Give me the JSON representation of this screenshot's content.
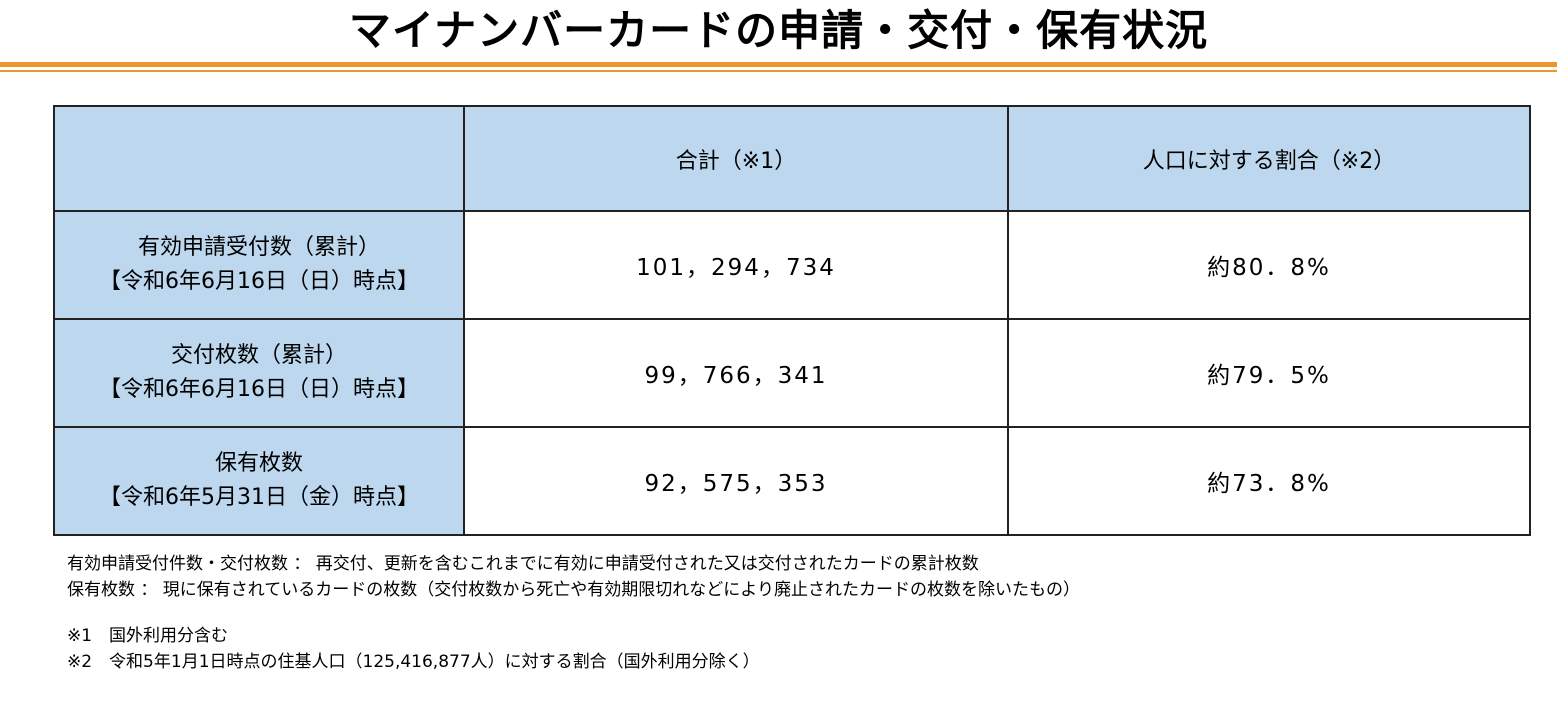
{
  "title": "マイナンバーカードの申請・交付・保有状況",
  "table": {
    "headers": [
      "",
      "合計（※1）",
      "人口に対する割合（※2）"
    ],
    "rows": [
      {
        "label_line1": "有効申請受付数（累計）",
        "label_line2": "【令和6年6月16日（日）時点】",
        "total": "101，294，734",
        "ratio": "約80．8%"
      },
      {
        "label_line1": "交付枚数（累計）",
        "label_line2": "【令和6年6月16日（日）時点】",
        "total": "99，766，341",
        "ratio": "約79．5%"
      },
      {
        "label_line1": "保有枚数",
        "label_line2": "【令和6年5月31日（金）時点】",
        "total": "92，575，353",
        "ratio": "約73．8%"
      }
    ]
  },
  "notes": {
    "definition1": "有効申請受付件数・交付枚数 ： 再交付、更新を含むこれまでに有効に申請受付された又は交付されたカードの累計枚数",
    "definition2": "保有枚数 ： 現に保有されているカードの枚数（交付枚数から死亡や有効期限切れなどにより廃止されたカードの枚数を除いたもの）",
    "footnote1": "※1　国外利用分含む",
    "footnote2": "※2　令和5年1月1日時点の住基人口（125,416,877人）に対する割合（国外利用分除く）"
  }
}
